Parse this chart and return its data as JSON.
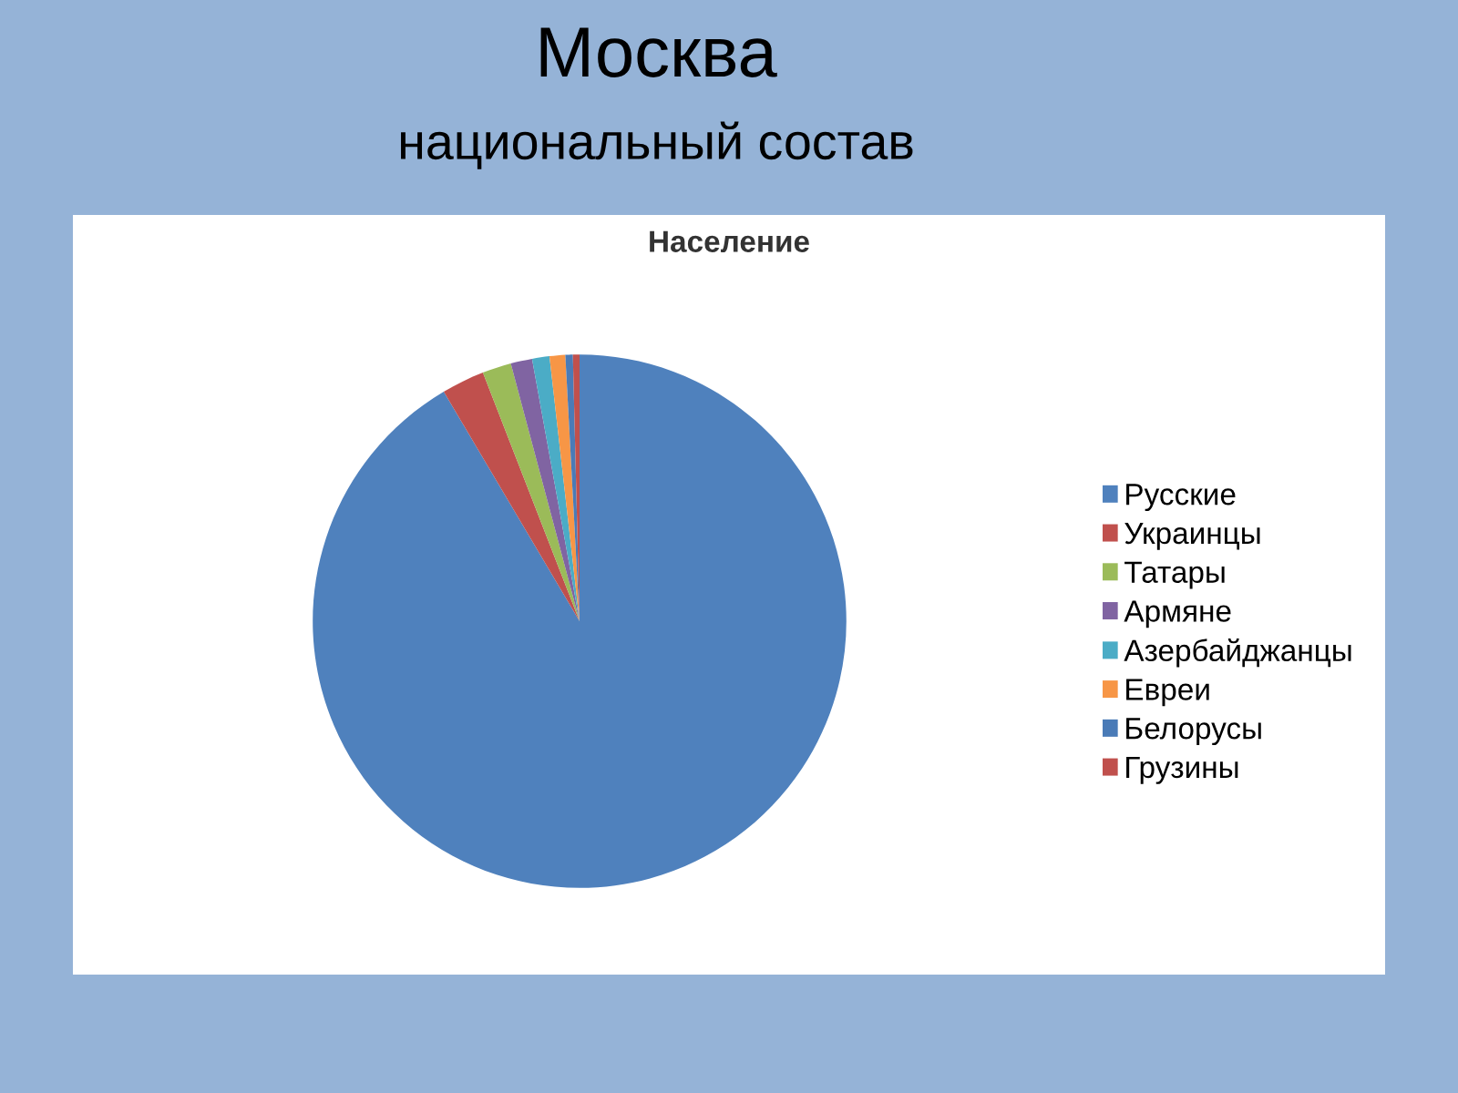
{
  "chart_data": {
    "type": "pie",
    "title": "Москва",
    "subtitle": "национальный состав",
    "annotations": [
      "Население"
    ],
    "categories": [
      "Русские",
      "Украинцы",
      "Татары",
      "Армяне",
      "Азербайджанцы",
      "Евреи",
      "Белорусы",
      "Грузины"
    ],
    "values": [
      91.5,
      2.6,
      1.75,
      1.3,
      1.05,
      0.95,
      0.45,
      0.4
    ],
    "colors": [
      "#4f81bd",
      "#c0504d",
      "#9bbb59",
      "#8064a2",
      "#4bacc6",
      "#f79646",
      "#4a7bb7",
      "#c0504d"
    ],
    "legend": "right"
  }
}
